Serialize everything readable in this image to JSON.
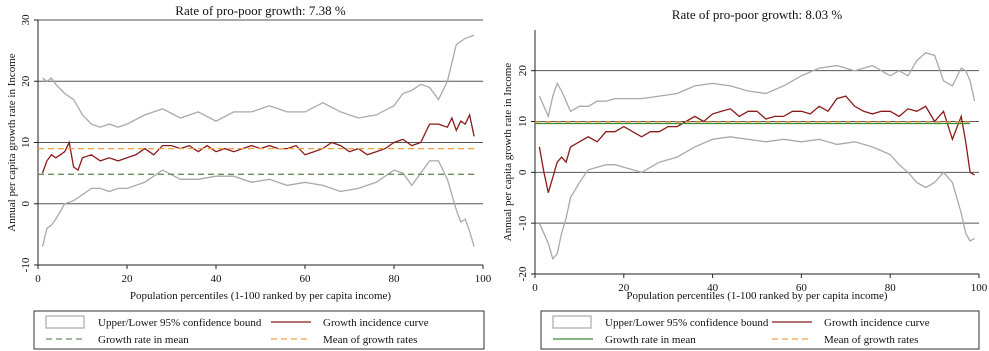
{
  "chart_data": [
    {
      "type": "line",
      "title": "Rate of pro-poor growth: 7.38 %",
      "xlabel": "Population percentiles (1-100 ranked by per capita income)",
      "ylabel": "Annual per capita growth rate in Income",
      "xlim": [
        0,
        100
      ],
      "ylim": [
        -10,
        30
      ],
      "xticks": [
        0,
        20,
        40,
        60,
        80,
        100
      ],
      "yticks": [
        -10,
        0,
        10,
        20,
        30
      ],
      "grid": "horizontal",
      "legend_position": "bottom",
      "series": [
        {
          "name": "Upper/Lower 95% confidence bound",
          "color": "#a9a9a9",
          "x": [
            1,
            2,
            3,
            4,
            6,
            8,
            10,
            12,
            14,
            16,
            18,
            20,
            24,
            28,
            32,
            36,
            40,
            44,
            48,
            52,
            56,
            60,
            64,
            68,
            72,
            76,
            80,
            82,
            84,
            86,
            88,
            90,
            92,
            94,
            96,
            98
          ],
          "y": [
            20.5,
            20,
            20.5,
            19.5,
            18,
            17,
            14.5,
            13,
            12.5,
            13,
            12.5,
            13,
            14.5,
            15.5,
            14,
            15,
            13.5,
            15,
            15,
            16,
            15,
            15,
            16.5,
            15,
            14,
            14.5,
            16,
            18,
            18.5,
            19.5,
            19,
            17,
            20,
            26,
            27,
            27.5
          ]
        },
        {
          "name": "",
          "color": "#a9a9a9",
          "x": [
            1,
            2,
            3,
            4,
            6,
            8,
            10,
            12,
            14,
            16,
            18,
            20,
            24,
            28,
            32,
            36,
            40,
            44,
            48,
            52,
            56,
            60,
            64,
            68,
            72,
            76,
            80,
            82,
            84,
            86,
            88,
            90,
            92,
            94,
            95,
            96,
            97,
            98
          ],
          "y": [
            -7,
            -4,
            -3.5,
            -2.5,
            0,
            0.5,
            1.5,
            2.5,
            2.5,
            2,
            2.5,
            2.5,
            3.5,
            5.5,
            4,
            4,
            4.5,
            4.5,
            3.5,
            4,
            3,
            3.5,
            3,
            2,
            2.5,
            3.5,
            5.5,
            5,
            3,
            5,
            7,
            7,
            4,
            -1,
            -3,
            -2.5,
            -4.5,
            -7
          ]
        },
        {
          "name": "Growth incidence curve",
          "color": "#8b1a1a",
          "x": [
            1,
            2,
            3,
            4,
            5,
            6,
            7,
            8,
            9,
            10,
            12,
            14,
            16,
            18,
            20,
            22,
            24,
            26,
            28,
            30,
            32,
            34,
            36,
            38,
            40,
            42,
            44,
            46,
            48,
            50,
            52,
            54,
            56,
            58,
            60,
            62,
            64,
            66,
            68,
            70,
            72,
            74,
            76,
            78,
            80,
            82,
            84,
            86,
            88,
            90,
            92,
            93,
            94,
            95,
            96,
            97,
            98
          ],
          "y": [
            5,
            7,
            8,
            7.5,
            8,
            8.5,
            10,
            6,
            5.5,
            7.5,
            8,
            7,
            7.5,
            7,
            7.5,
            8,
            9,
            8,
            9.5,
            9.5,
            9,
            9.5,
            8.5,
            9.5,
            8.5,
            9,
            8.5,
            9,
            9.5,
            9,
            9.5,
            9,
            9,
            9.5,
            8,
            8.5,
            9,
            10,
            9.5,
            8.5,
            9,
            8,
            8.5,
            9,
            10,
            10.5,
            9.5,
            10,
            13,
            13,
            12.5,
            14,
            12,
            13.5,
            13,
            14.5,
            11
          ]
        },
        {
          "name": "Growth rate in mean",
          "color": "#6b8e5a",
          "dash": "long",
          "x": [
            0,
            98
          ],
          "y": [
            4.8,
            4.8
          ]
        },
        {
          "name": "Mean of growth rates",
          "color": "#f0a040",
          "dash": "long",
          "x": [
            0,
            98
          ],
          "y": [
            9.0,
            9.0
          ]
        }
      ]
    },
    {
      "type": "line",
      "title": "Rate of pro-poor growth: 8.03 %",
      "xlabel": "Population percentiles (1-100 ranked by per capita income)",
      "ylabel": "Annual per capita growth rate in Income",
      "xlim": [
        0,
        100
      ],
      "ylim": [
        -20,
        28
      ],
      "xticks": [
        0,
        20,
        40,
        60,
        80,
        100
      ],
      "yticks": [
        -20,
        -10,
        0,
        10,
        20
      ],
      "grid": "horizontal",
      "legend_position": "bottom",
      "series": [
        {
          "name": "Upper/Lower 95% confidence bound",
          "color": "#a9a9a9",
          "x": [
            1,
            2,
            3,
            4,
            5,
            6,
            7,
            8,
            10,
            12,
            14,
            16,
            18,
            20,
            24,
            28,
            32,
            36,
            40,
            44,
            48,
            52,
            56,
            60,
            64,
            68,
            72,
            76,
            80,
            82,
            84,
            86,
            88,
            90,
            92,
            94,
            96,
            97,
            98,
            99
          ],
          "y": [
            15,
            13,
            11,
            15,
            17.5,
            16,
            14,
            12,
            13,
            13,
            14,
            14,
            14.5,
            14.5,
            14.5,
            15,
            15.5,
            17,
            17.5,
            17,
            16,
            15.5,
            17,
            19,
            20.5,
            21,
            20,
            21,
            19,
            20,
            19,
            22,
            23.5,
            23,
            18,
            17,
            20.5,
            20,
            18,
            14
          ]
        },
        {
          "name": "",
          "color": "#a9a9a9",
          "x": [
            1,
            2,
            3,
            4,
            5,
            6,
            7,
            8,
            10,
            12,
            14,
            16,
            18,
            20,
            24,
            28,
            32,
            36,
            40,
            44,
            48,
            52,
            56,
            60,
            64,
            68,
            72,
            76,
            80,
            82,
            84,
            86,
            88,
            90,
            92,
            94,
            96,
            97,
            98,
            99
          ],
          "y": [
            -10,
            -12,
            -14,
            -17,
            -16,
            -12,
            -9,
            -5,
            -2,
            0.5,
            1,
            1.5,
            1.5,
            1,
            0,
            2,
            3,
            5,
            6.5,
            7,
            6.5,
            6,
            6.5,
            6,
            6.5,
            5.5,
            6,
            5,
            3.5,
            1.5,
            0,
            -2,
            -3,
            -2,
            0,
            -2,
            -8,
            -12,
            -13.5,
            -13
          ]
        },
        {
          "name": "Growth incidence curve",
          "color": "#8b1a1a",
          "x": [
            1,
            2,
            3,
            4,
            5,
            6,
            7,
            8,
            10,
            12,
            14,
            16,
            18,
            20,
            22,
            24,
            26,
            28,
            30,
            32,
            34,
            36,
            38,
            40,
            42,
            44,
            46,
            48,
            50,
            52,
            54,
            56,
            58,
            60,
            62,
            64,
            66,
            68,
            70,
            72,
            74,
            76,
            78,
            80,
            82,
            84,
            86,
            88,
            90,
            92,
            94,
            96,
            97,
            98,
            99
          ],
          "y": [
            5,
            0,
            -4,
            -1,
            2,
            3,
            2,
            5,
            6,
            7,
            6,
            8,
            8,
            9,
            8,
            7,
            8,
            8,
            9,
            9,
            10,
            11,
            10,
            11.5,
            12,
            12.5,
            11,
            12,
            12,
            10.5,
            11,
            11,
            12,
            12,
            11.5,
            13,
            12,
            14.5,
            15,
            13,
            12,
            11.5,
            12,
            12,
            11,
            12.5,
            12,
            13,
            10,
            12,
            6.5,
            11,
            6,
            0,
            -0.5
          ]
        },
        {
          "name": "Growth rate in mean",
          "color": "#3a8a3a",
          "dash": "solid",
          "x": [
            0,
            98
          ],
          "y": [
            9.6,
            9.6
          ]
        },
        {
          "name": "Mean of growth rates",
          "color": "#f0a040",
          "dash": "long",
          "x": [
            0,
            98
          ],
          "y": [
            9.9,
            9.9
          ]
        }
      ]
    }
  ]
}
